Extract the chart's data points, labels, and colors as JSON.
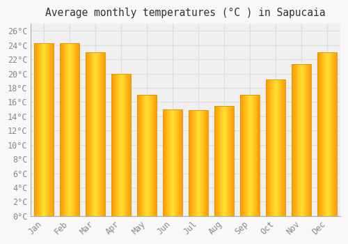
{
  "title": "Average monthly temperatures (°C ) in Sapucaia",
  "months": [
    "Jan",
    "Feb",
    "Mar",
    "Apr",
    "May",
    "Jun",
    "Jul",
    "Aug",
    "Sep",
    "Oct",
    "Nov",
    "Dec"
  ],
  "values": [
    24.3,
    24.3,
    23.0,
    20.0,
    17.0,
    15.0,
    14.9,
    15.5,
    17.0,
    19.2,
    21.3,
    23.0
  ],
  "bar_color_center": "#FFD700",
  "bar_color_edge": "#FFA500",
  "background_color": "#F8F8F8",
  "plot_bg_color": "#F0F0F0",
  "grid_color": "#DDDDDD",
  "text_color": "#888888",
  "title_color": "#333333",
  "ylim": [
    0,
    27
  ],
  "ytick_step": 2,
  "title_fontsize": 10.5,
  "tick_fontsize": 8.5,
  "bar_width": 0.75
}
